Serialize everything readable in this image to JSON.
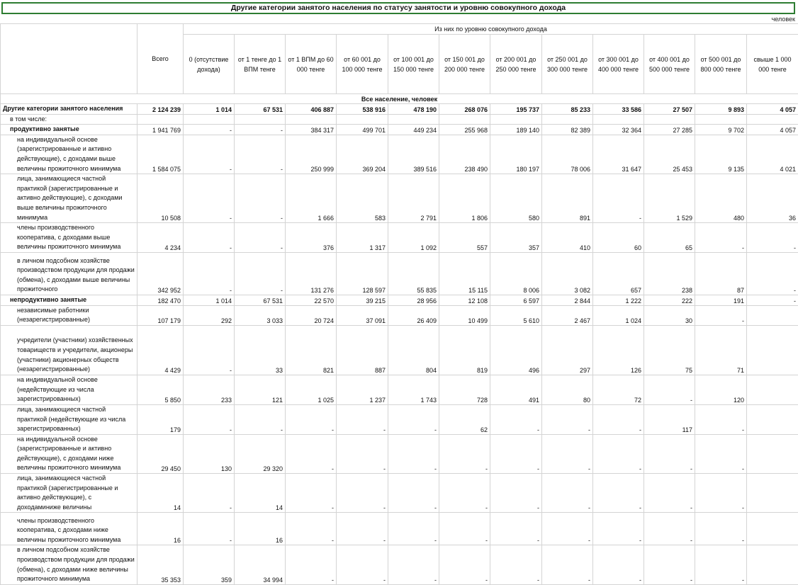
{
  "title": "Другие категории занятого населения по статусу занятости и уровню совокупного дохода",
  "unit": "человек",
  "header": {
    "total": "Всего",
    "group": "Из них по уровню совокупного дохода",
    "cols": [
      "0 (отсутствие дохода)",
      "от 1 тенге до 1 ВПМ тенге",
      "от 1 ВПМ до 60 000 тенге",
      "от 60 001 до 100 000 тенге",
      "от 100 001 до 150 000 тенге",
      "от 150 001 до 200 000 тенге",
      "от 200 001 до 250 000 тенге",
      "от 250 001 до 300 000 тенге",
      "от 300 001 до 400 000 тенге",
      "от 400 001 до 500 000 тенге",
      "от 500 001 до 800 000 тенге",
      "свыше 1 000 000 тенге"
    ]
  },
  "band": "Все население, человек",
  "rows": [
    {
      "label": "Другие категории занятого населения",
      "values": [
        "2 124 239",
        "1 014",
        "67 531",
        "406 887",
        "538 916",
        "478 190",
        "268 076",
        "195 737",
        "85 233",
        "33 586",
        "27 507",
        "9 893",
        "4 057"
      ]
    },
    {
      "label": "в том числе:",
      "values": [
        "",
        "",
        "",
        "",
        "",
        "",
        "",
        "",
        "",
        "",
        "",
        "",
        ""
      ]
    },
    {
      "label": "продуктивно занятые",
      "values": [
        "1 941 769",
        "-",
        "-",
        "384 317",
        "499 701",
        "449 234",
        "255 968",
        "189 140",
        "82 389",
        "32 364",
        "27 285",
        "9 702",
        "4 057"
      ]
    },
    {
      "label": "на индивидуальной основе (зарегистрированные и активно действующие), с доходами выше величины прожиточного минимума",
      "values": [
        "1 584 075",
        "-",
        "-",
        "250 999",
        "369 204",
        "389 516",
        "238 490",
        "180 197",
        "78 006",
        "31 647",
        "25 453",
        "9 135",
        "4 021"
      ]
    },
    {
      "label": "лица, занимающиеся частной практикой (зарегистрированные и активно действующие), с доходами выше величины прожиточного минимума",
      "values": [
        "10 508",
        "-",
        "-",
        "1 666",
        "583",
        "2 791",
        "1 806",
        "580",
        "891",
        "-",
        "1 529",
        "480",
        "36"
      ]
    },
    {
      "label": "члены производственного кооператива, с доходами выше величины прожиточного минимума",
      "values": [
        "4 234",
        "-",
        "-",
        "376",
        "1 317",
        "1 092",
        "557",
        "357",
        "410",
        "60",
        "65",
        "-",
        "-"
      ]
    },
    {
      "label": "в личном подсобном хозяйстве производством продукции для продажи (обмена), с доходами выше величины прожиточного",
      "values": [
        "342 952",
        "-",
        "-",
        "131 276",
        "128 597",
        "55 835",
        "15 115",
        "8 006",
        "3 082",
        "657",
        "238",
        "87",
        "-"
      ]
    },
    {
      "label": "непродуктивно занятые",
      "values": [
        "182 470",
        "1 014",
        "67 531",
        "22 570",
        "39 215",
        "28 956",
        "12 108",
        "6 597",
        "2 844",
        "1 222",
        "222",
        "191",
        "-"
      ]
    },
    {
      "label": "независимые  работники (незарегистрированные)",
      "values": [
        "107 179",
        "292",
        "3 033",
        "20 724",
        "37 091",
        "26 409",
        "10 499",
        "5 610",
        "2 467",
        "1 024",
        "30",
        "-",
        ""
      ]
    },
    {
      "label": "учредители  (участники) хозяйственных товариществ и учредители, акционеры (участники) акционерных обществ (незарегистрированные)",
      "values": [
        "4 429",
        "-",
        "33",
        "821",
        "887",
        "804",
        "819",
        "496",
        "297",
        "126",
        "75",
        "71",
        ""
      ]
    },
    {
      "label": "на индивидуальной основе (недействующие из числа зарегистрированных)",
      "values": [
        "5 850",
        "233",
        "121",
        "1 025",
        "1 237",
        "1 743",
        "728",
        "491",
        "80",
        "72",
        "-",
        "120",
        ""
      ]
    },
    {
      "label": "лица, занимающиеся частной практикой (недействующие из числа зарегистрированных)",
      "values": [
        "179",
        "-",
        "-",
        "-",
        "-",
        "-",
        "62",
        "-",
        "-",
        "-",
        "117",
        "-",
        ""
      ]
    },
    {
      "label": "на индивидуальной основе (зарегистрированные и активно действующие), с доходами ниже величины прожиточного минимума",
      "values": [
        "29 450",
        "130",
        "29 320",
        "-",
        "-",
        "-",
        "-",
        "-",
        "-",
        "-",
        "-",
        "-",
        ""
      ]
    },
    {
      "label": "лица, занимающиеся частной практикой (зарегистрированные и активно действующие), с доходаминиже величины",
      "values": [
        "14",
        "-",
        "14",
        "-",
        "-",
        "-",
        "-",
        "-",
        "-",
        "-",
        "-",
        "-",
        ""
      ]
    },
    {
      "label": "члены производственного кооператива, с доходами ниже величины прожиточного минимума",
      "values": [
        "16",
        "-",
        "16",
        "-",
        "-",
        "-",
        "-",
        "-",
        "-",
        "-",
        "-",
        "-",
        ""
      ]
    },
    {
      "label": "в личном подсобном хозяйстве производством продукции для продажи (обмена), с доходами ниже величины прожиточного минимума",
      "values": [
        "35 353",
        "359",
        "34 994",
        "-",
        "-",
        "-",
        "-",
        "-",
        "-",
        "-",
        "-",
        "-",
        ""
      ]
    }
  ]
}
